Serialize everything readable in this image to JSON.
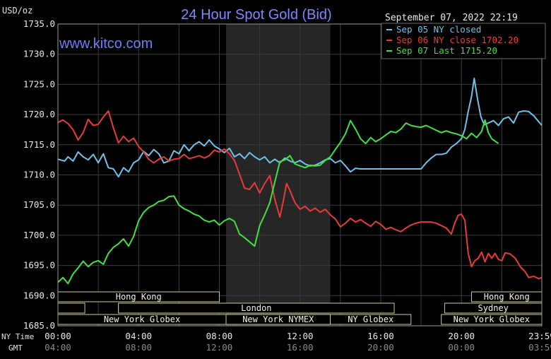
{
  "chart_data": {
    "type": "line",
    "title": "24 Hour Spot Gold (Bid)",
    "watermark": "www.kitco.com",
    "ylabel": "USD/oz",
    "timestamp": "September 07, 2022 22:19",
    "ylim": [
      1685.0,
      1735.0
    ],
    "y_ticks": [
      "1735.0",
      "1730.0",
      "1725.0",
      "1720.0",
      "1715.0",
      "1710.0",
      "1705.0",
      "1700.0",
      "1695.0",
      "1690.0",
      "1685.0"
    ],
    "xlim": [
      0,
      1439
    ],
    "x_tick_minutes": [
      0,
      240,
      480,
      720,
      960,
      1200,
      1439
    ],
    "x_row_label_ny": "NY Time",
    "x_row_label_gmt": "GMT",
    "x_ticks_ny": [
      "00:00",
      "04:00",
      "08:00",
      "12:00",
      "16:00",
      "20:00",
      "23:59"
    ],
    "x_ticks_gmt": [
      "04:00",
      "08:00",
      "12:00",
      "16:00",
      "20:00",
      "00:00",
      "03:59"
    ],
    "nymex_shade_minutes": [
      500,
      810
    ],
    "series": [
      {
        "name": "Sep 05 NY closed",
        "color": "#6ec3ea",
        "points": [
          [
            0,
            1712.6
          ],
          [
            20,
            1712.3
          ],
          [
            30,
            1713.0
          ],
          [
            45,
            1712.3
          ],
          [
            60,
            1713.8
          ],
          [
            75,
            1713.0
          ],
          [
            90,
            1712.5
          ],
          [
            105,
            1713.4
          ],
          [
            120,
            1712.0
          ],
          [
            135,
            1713.5
          ],
          [
            150,
            1711.2
          ],
          [
            165,
            1711.0
          ],
          [
            180,
            1709.7
          ],
          [
            195,
            1711.2
          ],
          [
            210,
            1710.5
          ],
          [
            225,
            1712.0
          ],
          [
            240,
            1712.5
          ],
          [
            255,
            1713.9
          ],
          [
            270,
            1713.2
          ],
          [
            285,
            1714.2
          ],
          [
            300,
            1713.5
          ],
          [
            315,
            1712.0
          ],
          [
            330,
            1712.3
          ],
          [
            345,
            1714.0
          ],
          [
            360,
            1713.5
          ],
          [
            375,
            1715.0
          ],
          [
            390,
            1714.0
          ],
          [
            405,
            1715.0
          ],
          [
            420,
            1715.5
          ],
          [
            435,
            1714.8
          ],
          [
            450,
            1715.8
          ],
          [
            465,
            1714.8
          ],
          [
            480,
            1714.3
          ],
          [
            495,
            1713.7
          ],
          [
            510,
            1714.4
          ],
          [
            525,
            1713.0
          ],
          [
            540,
            1713.5
          ],
          [
            555,
            1712.7
          ],
          [
            570,
            1713.7
          ],
          [
            585,
            1713.0
          ],
          [
            600,
            1712.5
          ],
          [
            615,
            1713.0
          ],
          [
            630,
            1712.0
          ],
          [
            645,
            1712.6
          ],
          [
            660,
            1712.0
          ],
          [
            675,
            1712.8
          ],
          [
            690,
            1712.3
          ],
          [
            705,
            1712.0
          ],
          [
            720,
            1712.4
          ],
          [
            735,
            1711.8
          ],
          [
            750,
            1711.5
          ],
          [
            765,
            1711.6
          ],
          [
            780,
            1712.0
          ],
          [
            795,
            1712.5
          ],
          [
            810,
            1712.7
          ],
          [
            825,
            1712.0
          ],
          [
            840,
            1712.4
          ],
          [
            855,
            1711.5
          ],
          [
            870,
            1710.5
          ],
          [
            885,
            1711.1
          ],
          [
            900,
            1711.0
          ],
          [
            950,
            1711.0
          ],
          [
            1000,
            1711.0
          ],
          [
            1050,
            1711.0
          ],
          [
            1080,
            1711.0
          ],
          [
            1095,
            1712.0
          ],
          [
            1110,
            1712.8
          ],
          [
            1125,
            1713.4
          ],
          [
            1140,
            1713.4
          ],
          [
            1155,
            1713.6
          ],
          [
            1170,
            1714.6
          ],
          [
            1185,
            1715.2
          ],
          [
            1200,
            1716.0
          ],
          [
            1210,
            1717.5
          ],
          [
            1220,
            1720.5
          ],
          [
            1230,
            1723.0
          ],
          [
            1238,
            1726.0
          ],
          [
            1248,
            1722.5
          ],
          [
            1258,
            1719.6
          ],
          [
            1268,
            1718.3
          ],
          [
            1280,
            1718.6
          ],
          [
            1295,
            1719.0
          ],
          [
            1310,
            1718.2
          ],
          [
            1325,
            1719.3
          ],
          [
            1340,
            1719.6
          ],
          [
            1355,
            1718.6
          ],
          [
            1370,
            1720.4
          ],
          [
            1385,
            1720.6
          ],
          [
            1400,
            1720.5
          ],
          [
            1415,
            1719.8
          ],
          [
            1430,
            1718.8
          ],
          [
            1439,
            1718.2
          ]
        ]
      },
      {
        "name": "Sep 06 NY close 1702.20",
        "color": "#e83a3a",
        "points": [
          [
            0,
            1718.7
          ],
          [
            15,
            1719.1
          ],
          [
            30,
            1718.5
          ],
          [
            45,
            1717.5
          ],
          [
            60,
            1715.8
          ],
          [
            75,
            1717.0
          ],
          [
            90,
            1719.2
          ],
          [
            105,
            1718.2
          ],
          [
            120,
            1718.4
          ],
          [
            135,
            1719.6
          ],
          [
            150,
            1720.6
          ],
          [
            165,
            1717.8
          ],
          [
            180,
            1715.3
          ],
          [
            195,
            1716.4
          ],
          [
            210,
            1715.5
          ],
          [
            225,
            1716.1
          ],
          [
            240,
            1714.7
          ],
          [
            255,
            1713.8
          ],
          [
            270,
            1712.6
          ],
          [
            285,
            1712.0
          ],
          [
            300,
            1712.6
          ],
          [
            315,
            1713.0
          ],
          [
            330,
            1712.3
          ],
          [
            345,
            1712.6
          ],
          [
            360,
            1712.7
          ],
          [
            375,
            1713.4
          ],
          [
            390,
            1712.7
          ],
          [
            405,
            1712.9
          ],
          [
            420,
            1713.2
          ],
          [
            435,
            1712.8
          ],
          [
            450,
            1713.2
          ],
          [
            465,
            1714.1
          ],
          [
            480,
            1713.8
          ],
          [
            495,
            1714.3
          ],
          [
            510,
            1713.5
          ],
          [
            525,
            1712.4
          ],
          [
            540,
            1710.1
          ],
          [
            555,
            1707.8
          ],
          [
            570,
            1707.6
          ],
          [
            585,
            1708.7
          ],
          [
            600,
            1707.0
          ],
          [
            615,
            1708.6
          ],
          [
            630,
            1709.9
          ],
          [
            645,
            1706.0
          ],
          [
            660,
            1703.0
          ],
          [
            670,
            1705.6
          ],
          [
            680,
            1708.6
          ],
          [
            690,
            1707.4
          ],
          [
            705,
            1705.4
          ],
          [
            720,
            1704.3
          ],
          [
            735,
            1704.8
          ],
          [
            750,
            1704.0
          ],
          [
            765,
            1704.5
          ],
          [
            780,
            1703.8
          ],
          [
            795,
            1704.3
          ],
          [
            810,
            1703.4
          ],
          [
            825,
            1702.7
          ],
          [
            840,
            1701.4
          ],
          [
            855,
            1702.0
          ],
          [
            870,
            1702.8
          ],
          [
            885,
            1702.2
          ],
          [
            900,
            1702.6
          ],
          [
            915,
            1702.0
          ],
          [
            930,
            1701.5
          ],
          [
            945,
            1702.3
          ],
          [
            960,
            1701.8
          ],
          [
            975,
            1701.0
          ],
          [
            990,
            1701.3
          ],
          [
            1005,
            1700.9
          ],
          [
            1020,
            1700.6
          ],
          [
            1035,
            1701.2
          ],
          [
            1050,
            1701.7
          ],
          [
            1065,
            1702.0
          ],
          [
            1080,
            1702.2
          ],
          [
            1095,
            1702.2
          ],
          [
            1110,
            1702.2
          ],
          [
            1125,
            1702.0
          ],
          [
            1140,
            1701.6
          ],
          [
            1155,
            1701.2
          ],
          [
            1170,
            1700.2
          ],
          [
            1180,
            1702.0
          ],
          [
            1190,
            1703.3
          ],
          [
            1200,
            1703.5
          ],
          [
            1210,
            1702.5
          ],
          [
            1220,
            1697.0
          ],
          [
            1230,
            1694.8
          ],
          [
            1240,
            1695.8
          ],
          [
            1250,
            1696.2
          ],
          [
            1260,
            1697.2
          ],
          [
            1270,
            1695.6
          ],
          [
            1280,
            1697.0
          ],
          [
            1290,
            1696.2
          ],
          [
            1300,
            1697.0
          ],
          [
            1310,
            1696.0
          ],
          [
            1320,
            1695.8
          ],
          [
            1330,
            1697.1
          ],
          [
            1345,
            1696.9
          ],
          [
            1360,
            1696.2
          ],
          [
            1375,
            1694.8
          ],
          [
            1390,
            1693.9
          ],
          [
            1400,
            1693.0
          ],
          [
            1415,
            1693.2
          ],
          [
            1430,
            1692.8
          ],
          [
            1439,
            1693.0
          ]
        ]
      },
      {
        "name": "Sep 07 Last 1715.20",
        "color": "#3ee33e",
        "points": [
          [
            0,
            1692.2
          ],
          [
            15,
            1693.0
          ],
          [
            30,
            1692.0
          ],
          [
            45,
            1693.6
          ],
          [
            60,
            1694.6
          ],
          [
            75,
            1695.7
          ],
          [
            90,
            1694.8
          ],
          [
            105,
            1695.5
          ],
          [
            120,
            1695.8
          ],
          [
            135,
            1695.2
          ],
          [
            150,
            1697.0
          ],
          [
            165,
            1698.0
          ],
          [
            180,
            1698.6
          ],
          [
            195,
            1699.4
          ],
          [
            210,
            1698.2
          ],
          [
            225,
            1699.8
          ],
          [
            240,
            1702.4
          ],
          [
            255,
            1703.8
          ],
          [
            270,
            1704.6
          ],
          [
            285,
            1705.0
          ],
          [
            300,
            1705.6
          ],
          [
            315,
            1705.8
          ],
          [
            330,
            1706.4
          ],
          [
            345,
            1706.5
          ],
          [
            360,
            1705.0
          ],
          [
            375,
            1704.4
          ],
          [
            390,
            1704.0
          ],
          [
            405,
            1703.5
          ],
          [
            420,
            1703.2
          ],
          [
            435,
            1702.5
          ],
          [
            450,
            1702.2
          ],
          [
            465,
            1702.5
          ],
          [
            480,
            1701.7
          ],
          [
            495,
            1702.4
          ],
          [
            510,
            1702.8
          ],
          [
            525,
            1702.3
          ],
          [
            540,
            1700.2
          ],
          [
            555,
            1699.6
          ],
          [
            570,
            1698.9
          ],
          [
            585,
            1698.2
          ],
          [
            600,
            1701.6
          ],
          [
            615,
            1703.4
          ],
          [
            630,
            1705.4
          ],
          [
            645,
            1708.8
          ],
          [
            660,
            1712.2
          ],
          [
            675,
            1712.5
          ],
          [
            690,
            1713.2
          ],
          [
            705,
            1711.8
          ],
          [
            720,
            1711.5
          ],
          [
            735,
            1711.2
          ],
          [
            750,
            1711.6
          ],
          [
            765,
            1711.5
          ],
          [
            780,
            1711.6
          ],
          [
            795,
            1712.4
          ],
          [
            810,
            1713.0
          ],
          [
            825,
            1714.2
          ],
          [
            840,
            1715.4
          ],
          [
            855,
            1716.8
          ],
          [
            870,
            1719.0
          ],
          [
            885,
            1717.6
          ],
          [
            900,
            1716.0
          ],
          [
            915,
            1715.2
          ],
          [
            930,
            1716.2
          ],
          [
            945,
            1715.5
          ],
          [
            960,
            1716.0
          ],
          [
            975,
            1716.6
          ],
          [
            990,
            1717.2
          ],
          [
            1005,
            1717.0
          ],
          [
            1020,
            1717.6
          ],
          [
            1035,
            1718.6
          ],
          [
            1050,
            1718.2
          ],
          [
            1065,
            1718.0
          ],
          [
            1080,
            1717.9
          ],
          [
            1095,
            1718.2
          ],
          [
            1110,
            1717.8
          ],
          [
            1125,
            1717.4
          ],
          [
            1140,
            1717.0
          ],
          [
            1155,
            1717.3
          ],
          [
            1170,
            1717.0
          ],
          [
            1185,
            1716.8
          ],
          [
            1200,
            1716.5
          ],
          [
            1215,
            1716.0
          ],
          [
            1230,
            1716.9
          ],
          [
            1245,
            1716.2
          ],
          [
            1260,
            1717.2
          ],
          [
            1270,
            1719.1
          ],
          [
            1280,
            1717.0
          ],
          [
            1290,
            1716.0
          ],
          [
            1300,
            1715.6
          ],
          [
            1310,
            1715.2
          ]
        ]
      }
    ],
    "sessions": [
      {
        "label": "Hong Kong",
        "start": 0,
        "end": 480,
        "row": 0
      },
      {
        "label": "Hong Kong",
        "start": 1230,
        "end": 1439,
        "row": 0
      },
      {
        "label": "",
        "start": 0,
        "end": 80,
        "row": 1
      },
      {
        "label": "",
        "start": 180,
        "end": 600,
        "row": 1
      },
      {
        "label": "London",
        "start": 180,
        "end": 1000,
        "row": 1
      },
      {
        "label": "Sydney",
        "start": 1150,
        "end": 1439,
        "row": 1
      },
      {
        "label": "New York Globex",
        "start": 0,
        "end": 500,
        "row": 2
      },
      {
        "label": "New York NYMEX",
        "start": 500,
        "end": 810,
        "row": 2
      },
      {
        "label": "NY Globex",
        "start": 810,
        "end": 1050,
        "row": 2
      },
      {
        "label": "New York Globex",
        "start": 1140,
        "end": 1439,
        "row": 2
      }
    ],
    "grid": true,
    "legend_position": "top-right"
  }
}
